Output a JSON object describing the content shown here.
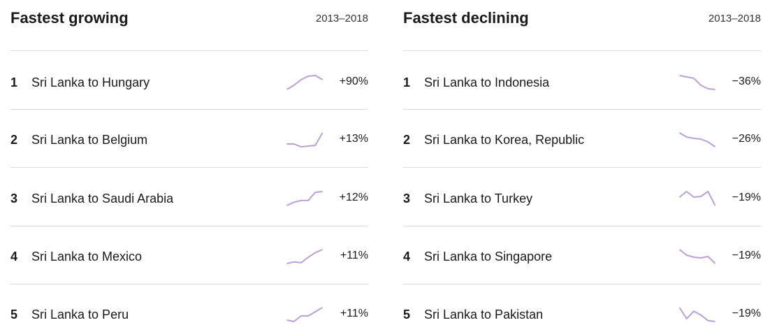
{
  "panels": [
    {
      "title": "Fastest growing",
      "period": "2013–2018",
      "rows": [
        {
          "rank": 1,
          "route": "Sri Lanka to Hungary",
          "change": "+90%",
          "trend": [
            0,
            0.3,
            0.7,
            0.95,
            1,
            0.7
          ]
        },
        {
          "rank": 2,
          "route": "Sri Lanka to Belgium",
          "change": "+13%",
          "trend": [
            0.2,
            0.2,
            0,
            0.05,
            0.1,
            1
          ]
        },
        {
          "rank": 3,
          "route": "Sri Lanka to Saudi Arabia",
          "change": "+12%",
          "trend": [
            0,
            0.2,
            0.3,
            0.3,
            0.8,
            0.85
          ]
        },
        {
          "rank": 4,
          "route": "Sri Lanka to Mexico",
          "change": "+11%",
          "trend": [
            0.1,
            0.2,
            0.15,
            0.5,
            0.8,
            1
          ]
        },
        {
          "rank": 5,
          "route": "Sri Lanka to Peru",
          "change": "+11%",
          "trend": [
            0.1,
            0,
            0.4,
            0.4,
            0.7,
            1
          ]
        }
      ]
    },
    {
      "title": "Fastest declining",
      "period": "2013–2018",
      "rows": [
        {
          "rank": 1,
          "route": "Sri Lanka to Indonesia",
          "change": "−36%",
          "trend": [
            1,
            0.9,
            0.8,
            0.3,
            0.05,
            0
          ]
        },
        {
          "rank": 2,
          "route": "Sri Lanka to Korea, Republic",
          "change": "−26%",
          "trend": [
            1,
            0.7,
            0.6,
            0.55,
            0.35,
            0
          ]
        },
        {
          "rank": 3,
          "route": "Sri Lanka to Turkey",
          "change": "−19%",
          "trend": [
            0.6,
            1,
            0.6,
            0.65,
            1,
            0
          ]
        },
        {
          "rank": 4,
          "route": "Sri Lanka to Singapore",
          "change": "−19%",
          "trend": [
            1,
            0.6,
            0.45,
            0.4,
            0.5,
            0
          ]
        },
        {
          "rank": 5,
          "route": "Sri Lanka to Pakistan",
          "change": "−19%",
          "trend": [
            0.8,
            0.2,
            0.6,
            0.4,
            0.1,
            0.05
          ]
        }
      ]
    }
  ]
}
